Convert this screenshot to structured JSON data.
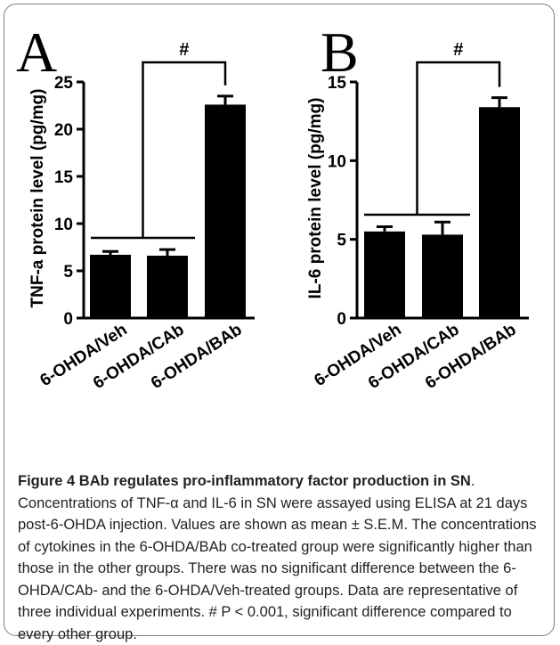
{
  "caption": {
    "label": "Figure 4",
    "title": "BAb regulates pro-inflammatory factor production in SN",
    "text": ". Concentrations of TNF-α and IL-6 in SN were assayed using ELISA at 21 days post-6-OHDA injection. Values are shown as mean ± S.E.M. The concentrations of cytokines in the 6-OHDA/BAb co-treated group were significantly higher than those in the other groups. There was no significant difference between the 6-OHDA/CAb- and the 6-OHDA/Veh-treated groups. Data are representative of three individual experiments. # P < 0.001, significant difference compared to every other group."
  },
  "chart_data": [
    {
      "type": "bar",
      "panel_label": "A",
      "ylabel": "TNF-a protein level (pg/mg)",
      "categories": [
        "6-OHDA/Veh",
        "6-OHDA/CAb",
        "6-OHDA/BAb"
      ],
      "values": [
        6.7,
        6.6,
        22.6
      ],
      "errors": [
        0.35,
        0.65,
        0.9
      ],
      "ylim": [
        0,
        25
      ],
      "yticks": [
        "0",
        "5",
        "10",
        "15",
        "20",
        "25"
      ],
      "significance": "#",
      "bar_color": "#000000"
    },
    {
      "type": "bar",
      "panel_label": "B",
      "ylabel": "IL-6 protein level (pg/mg)",
      "categories": [
        "6-OHDA/Veh",
        "6-OHDA/CAb",
        "6-OHDA/BAb"
      ],
      "values": [
        5.5,
        5.3,
        13.4
      ],
      "errors": [
        0.3,
        0.8,
        0.6
      ],
      "ylim": [
        0,
        15
      ],
      "yticks": [
        "0",
        "5",
        "10",
        "15"
      ],
      "significance": "#",
      "bar_color": "#000000"
    }
  ]
}
